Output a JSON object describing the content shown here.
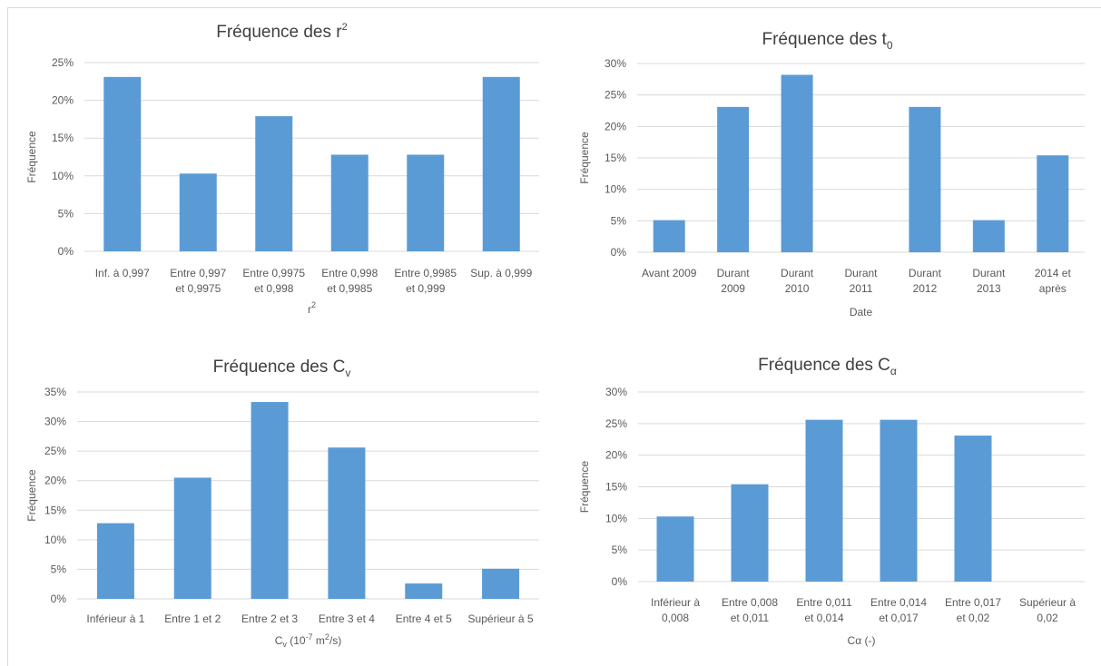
{
  "colors": {
    "bar": "#5b9bd5",
    "grid": "#d9d9d9",
    "text": "#595959",
    "title": "#404040"
  },
  "chart_data": [
    {
      "type": "bar",
      "title": "Fréquence des r",
      "title_sup": "2",
      "xlabel": "r",
      "xlabel_sup": "2",
      "ylabel": "Fréquence",
      "ylim": [
        0,
        25
      ],
      "yticks": [
        "0%",
        "5%",
        "10%",
        "15%",
        "20%",
        "25%"
      ],
      "categories": [
        [
          "Inf. à 0,997"
        ],
        [
          "Entre 0,997",
          "et 0,9975"
        ],
        [
          "Entre 0,9975",
          "et 0,998"
        ],
        [
          "Entre 0,998",
          "et 0,9985"
        ],
        [
          "Entre 0,9985",
          "et 0,999"
        ],
        [
          "Sup. à 0,999"
        ]
      ],
      "values": [
        23.1,
        10.3,
        17.9,
        12.8,
        12.8,
        23.1
      ],
      "grid": true,
      "legend": "none"
    },
    {
      "type": "bar",
      "title": "Fréquence des t",
      "title_sub": "0",
      "xlabel": "Date",
      "ylabel": "Fréquence",
      "ylim": [
        0,
        30
      ],
      "yticks": [
        "0%",
        "5%",
        "10%",
        "15%",
        "20%",
        "25%",
        "30%"
      ],
      "categories": [
        [
          "Avant 2009"
        ],
        [
          "Durant",
          "2009"
        ],
        [
          "Durant",
          "2010"
        ],
        [
          "Durant",
          "2011"
        ],
        [
          "Durant",
          "2012"
        ],
        [
          "Durant",
          "2013"
        ],
        [
          "2014 et",
          "après"
        ]
      ],
      "values": [
        5.1,
        23.1,
        28.2,
        0,
        23.1,
        5.1,
        15.4
      ],
      "grid": true,
      "legend": "none"
    },
    {
      "type": "bar",
      "title": "Fréquence des C",
      "title_sub": "v",
      "xlabel": "C",
      "xlabel_sub": "v",
      "xlabel_rest": " (10",
      "xlabel_sup": "-7",
      "xlabel_rest2": " m",
      "xlabel_sup2": "2",
      "xlabel_rest3": "/s)",
      "ylabel": "Fréquence",
      "ylim": [
        0,
        35
      ],
      "yticks": [
        "0%",
        "5%",
        "10%",
        "15%",
        "20%",
        "25%",
        "30%",
        "35%"
      ],
      "categories": [
        [
          "Inférieur à 1"
        ],
        [
          "Entre 1 et 2"
        ],
        [
          "Entre 2 et 3"
        ],
        [
          "Entre 3 et 4"
        ],
        [
          "Entre 4 et 5"
        ],
        [
          "Supérieur à 5"
        ]
      ],
      "values": [
        12.8,
        20.5,
        33.3,
        25.6,
        2.6,
        5.1
      ],
      "grid": true,
      "legend": "none"
    },
    {
      "type": "bar",
      "title": "Fréquence des C",
      "title_sub": "α",
      "xlabel": "Cα (-)",
      "ylabel": "Fréquence",
      "ylim": [
        0,
        30
      ],
      "yticks": [
        "0%",
        "5%",
        "10%",
        "15%",
        "20%",
        "25%",
        "30%"
      ],
      "categories": [
        [
          "Inférieur à",
          "0,008"
        ],
        [
          "Entre 0,008",
          "et 0,011"
        ],
        [
          "Entre 0,011",
          "et 0,014"
        ],
        [
          "Entre 0,014",
          "et 0,017"
        ],
        [
          "Entre 0,017",
          "et 0,02"
        ],
        [
          "Supérieur à",
          "0,02"
        ]
      ],
      "values": [
        10.3,
        15.4,
        25.6,
        25.6,
        23.1,
        0
      ],
      "grid": true,
      "legend": "none"
    }
  ]
}
